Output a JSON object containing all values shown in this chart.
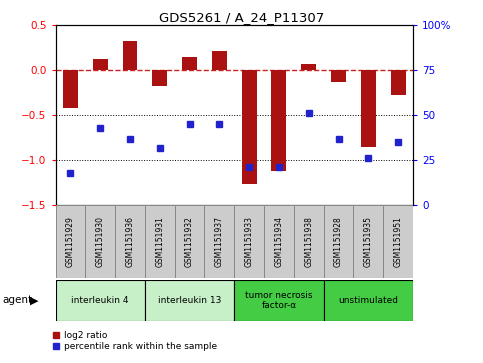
{
  "title": "GDS5261 / A_24_P11307",
  "samples": [
    "GSM1151929",
    "GSM1151930",
    "GSM1151936",
    "GSM1151931",
    "GSM1151932",
    "GSM1151937",
    "GSM1151933",
    "GSM1151934",
    "GSM1151938",
    "GSM1151928",
    "GSM1151935",
    "GSM1151951"
  ],
  "log2_ratio": [
    -0.42,
    0.13,
    0.33,
    -0.17,
    0.15,
    0.22,
    -1.27,
    -1.12,
    0.07,
    -0.13,
    -0.85,
    -0.28
  ],
  "percentile_rank": [
    18,
    43,
    37,
    32,
    45,
    45,
    21,
    21,
    51,
    37,
    26,
    35
  ],
  "groups": [
    {
      "label": "interleukin 4",
      "start": 0,
      "end": 3,
      "color": "#c8f0c8"
    },
    {
      "label": "interleukin 13",
      "start": 3,
      "end": 6,
      "color": "#c8f0c8"
    },
    {
      "label": "tumor necrosis\nfactor-α",
      "start": 6,
      "end": 9,
      "color": "#44cc44"
    },
    {
      "label": "unstimulated",
      "start": 9,
      "end": 12,
      "color": "#44cc44"
    }
  ],
  "ylim_left": [
    -1.5,
    0.5
  ],
  "ylim_right": [
    0,
    100
  ],
  "bar_color": "#aa1111",
  "dot_color": "#2222cc",
  "hline_color": "#cc2222",
  "background_color": "#ffffff",
  "sample_box_color": "#cccccc",
  "right_ytick_labels": [
    "0",
    "25",
    "50",
    "75",
    "100%"
  ],
  "right_ytick_values": [
    0,
    25,
    50,
    75,
    100
  ]
}
